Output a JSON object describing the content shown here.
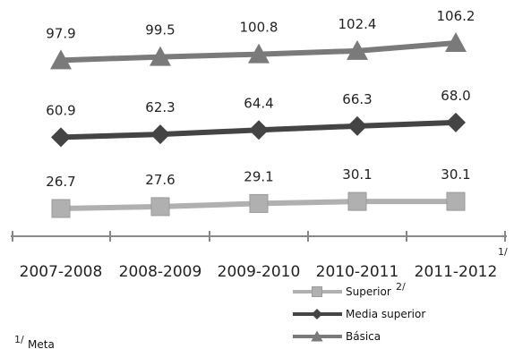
{
  "chart_data": {
    "type": "line",
    "categories": [
      "2007-2008",
      "2008-2009",
      "2009-2010",
      "2010-2011",
      "2011-2012"
    ],
    "category_superscript": {
      "index": 4,
      "text": "1/"
    },
    "series": [
      {
        "name": "Superior",
        "values": [
          26.7,
          27.6,
          29.1,
          30.1,
          30.1
        ],
        "color": "#b0b0b0",
        "marker": "square",
        "label_suffix": "2/"
      },
      {
        "name": "Media superior",
        "values": [
          60.9,
          62.3,
          64.4,
          66.3,
          68.0
        ],
        "color": "#444444",
        "marker": "diamond",
        "label_suffix": ""
      },
      {
        "name": "Básica",
        "values": [
          97.9,
          99.5,
          100.8,
          102.4,
          106.2
        ],
        "color": "#7a7a7a",
        "marker": "triangle",
        "label_suffix": ""
      }
    ],
    "legend_position": "bottom-center",
    "footnote": {
      "sup": "1/",
      "text": "Meta"
    },
    "gridlines": false
  }
}
